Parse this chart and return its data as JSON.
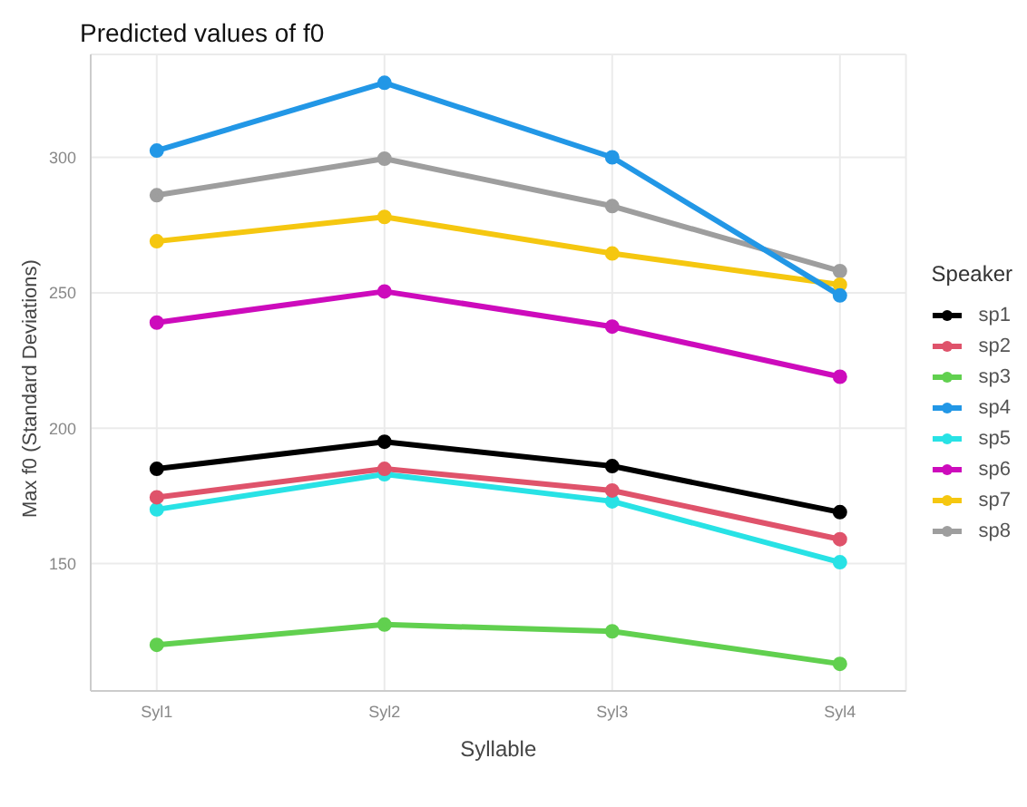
{
  "chart_data": {
    "type": "line",
    "title": "Predicted values of f0",
    "xlabel": "Syllable",
    "ylabel": "Max f0 (Standard Deviations)",
    "legend_title": "Speaker",
    "legend": "right",
    "grid": true,
    "marker": "circle",
    "line_style": "solid",
    "categories": [
      "Syl1",
      "Syl2",
      "Syl3",
      "Syl4"
    ],
    "ylim": [
      103,
      338
    ],
    "yticks": [
      150,
      200,
      250,
      300
    ],
    "series": [
      {
        "name": "sp1",
        "color": "#000000",
        "values": [
          185,
          195,
          186,
          169
        ]
      },
      {
        "name": "sp2",
        "color": "#df536b",
        "values": [
          174.5,
          185,
          177,
          159
        ]
      },
      {
        "name": "sp3",
        "color": "#61d04f",
        "values": [
          120,
          127.5,
          125,
          113
        ]
      },
      {
        "name": "sp4",
        "color": "#2297e6",
        "values": [
          302.5,
          327.5,
          300,
          249
        ]
      },
      {
        "name": "sp5",
        "color": "#28e2e5",
        "values": [
          170,
          183,
          173,
          150.5
        ]
      },
      {
        "name": "sp6",
        "color": "#cd0bbc",
        "values": [
          239,
          250.5,
          237.5,
          219
        ]
      },
      {
        "name": "sp7",
        "color": "#f5c710",
        "values": [
          269,
          278,
          264.5,
          253
        ]
      },
      {
        "name": "sp8",
        "color": "#9e9e9e",
        "values": [
          286,
          299.5,
          282,
          258
        ]
      }
    ]
  }
}
